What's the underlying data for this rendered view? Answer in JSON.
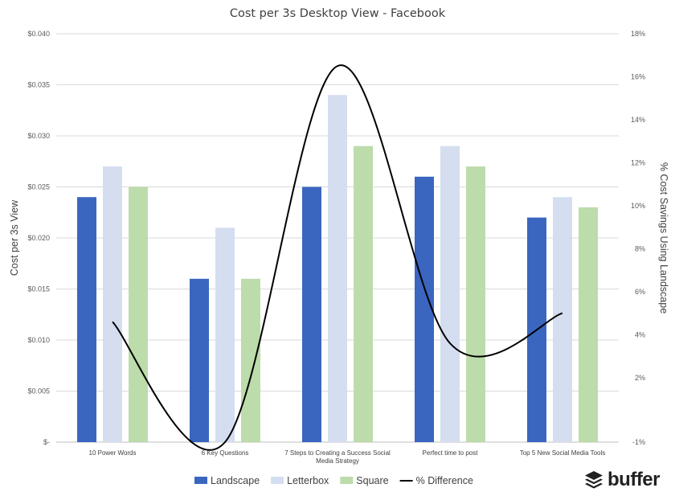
{
  "chart_data": {
    "type": "bar",
    "title": "Cost per 3s Desktop View - Facebook",
    "ylabel": "Cost per 3s View",
    "y2label": "% Cost Savings Using Landscape",
    "categories": [
      [
        "10 Power Words"
      ],
      [
        "6 Key Questions"
      ],
      [
        "7 Steps to Creating a Success Social",
        "Media Strategy"
      ],
      [
        "Perfect time to post"
      ],
      [
        "Top 5 New Social Media Tools"
      ]
    ],
    "ylim": [
      0,
      0.04
    ],
    "yticks": [
      {
        "value": 0,
        "label": "$-"
      },
      {
        "value": 0.005,
        "label": "$0.005"
      },
      {
        "value": 0.01,
        "label": "$0.010"
      },
      {
        "value": 0.015,
        "label": "$0.015"
      },
      {
        "value": 0.02,
        "label": "$0.020"
      },
      {
        "value": 0.025,
        "label": "$0.025"
      },
      {
        "value": 0.03,
        "label": "$0.030"
      },
      {
        "value": 0.035,
        "label": "$0.035"
      },
      {
        "value": 0.04,
        "label": "$0.040"
      }
    ],
    "y2lim": [
      -1,
      18
    ],
    "y2ticks": [
      {
        "value": -1,
        "label": "-1%"
      },
      {
        "value": 2,
        "label": "2%"
      },
      {
        "value": 4,
        "label": "4%"
      },
      {
        "value": 6,
        "label": "6%"
      },
      {
        "value": 8,
        "label": "8%"
      },
      {
        "value": 10,
        "label": "10%"
      },
      {
        "value": 12,
        "label": "12%"
      },
      {
        "value": 14,
        "label": "14%"
      },
      {
        "value": 16,
        "label": "16%"
      },
      {
        "value": 18,
        "label": "18%"
      }
    ],
    "grid": true,
    "legend_position": "bottom",
    "series": [
      {
        "name": "Landscape",
        "type": "bar",
        "axis": "left",
        "color": "#3a66c0",
        "values": [
          0.024,
          0.016,
          0.025,
          0.026,
          0.022
        ]
      },
      {
        "name": "Letterbox",
        "type": "bar",
        "axis": "left",
        "color": "#d5ddf0",
        "values": [
          0.027,
          0.021,
          0.034,
          0.029,
          0.024
        ]
      },
      {
        "name": "Square",
        "type": "bar",
        "axis": "left",
        "color": "#bcdcab",
        "values": [
          0.025,
          0.016,
          0.029,
          0.027,
          0.023
        ]
      },
      {
        "name": "% Difference",
        "type": "line",
        "axis": "right",
        "color": "#000000",
        "smooth": true,
        "values": [
          4.6,
          -1.0,
          16.5,
          3.6,
          5.0
        ]
      }
    ]
  },
  "brand": {
    "name": "buffer",
    "icon": "stacked-layers-icon",
    "color": "#222222"
  }
}
